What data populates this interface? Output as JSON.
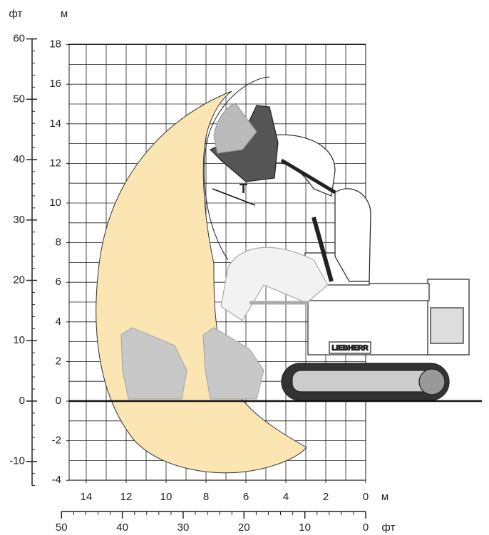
{
  "axis_units": {
    "left_ft": "фт",
    "left_m": "м",
    "bottom_m": "м",
    "bottom_ft": "фт"
  },
  "y_m_ticks": [
    18,
    16,
    14,
    12,
    10,
    8,
    6,
    4,
    2,
    0,
    -2,
    -4
  ],
  "y_ft_ticks": [
    60,
    50,
    40,
    30,
    20,
    10,
    0,
    -10
  ],
  "x_m_ticks": [
    14,
    12,
    10,
    8,
    6,
    4,
    2,
    0
  ],
  "x_ft_ticks": [
    50,
    40,
    30,
    20,
    10,
    0
  ],
  "dimension_label": "T",
  "brand": "LIEBHERR"
}
